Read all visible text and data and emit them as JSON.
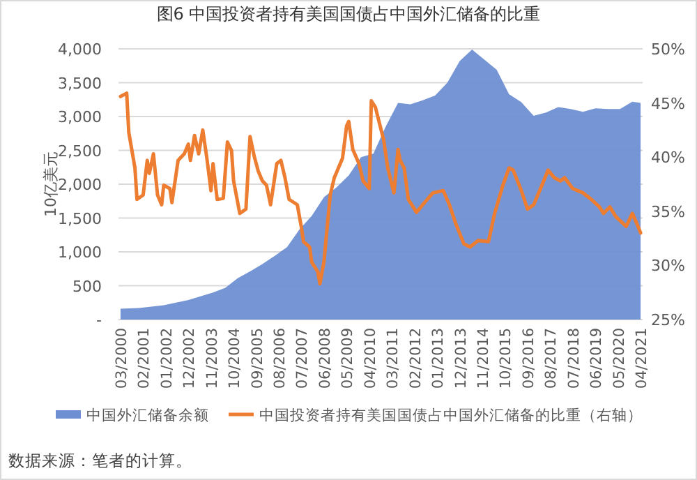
{
  "chart_data": {
    "type": "line",
    "title": "图6   中国投资者持有美国国债占中国外汇储备的比重",
    "ylabel": "10亿美元",
    "xlim": [
      "2000-02",
      "2021-05"
    ],
    "xticks": [
      {
        "value": "2000-03",
        "label": "03/2000"
      },
      {
        "value": "2001-02",
        "label": "02/2001"
      },
      {
        "value": "2002-01",
        "label": "01/2002"
      },
      {
        "value": "2002-12",
        "label": "12/2002"
      },
      {
        "value": "2003-11",
        "label": "11/2003"
      },
      {
        "value": "2004-10",
        "label": "10/2004"
      },
      {
        "value": "2005-09",
        "label": "09/2005"
      },
      {
        "value": "2006-08",
        "label": "08/2006"
      },
      {
        "value": "2007-07",
        "label": "07/2007"
      },
      {
        "value": "2008-06",
        "label": "06/2008"
      },
      {
        "value": "2009-05",
        "label": "05/2009"
      },
      {
        "value": "2010-04",
        "label": "04/2010"
      },
      {
        "value": "2011-03",
        "label": "03/2011"
      },
      {
        "value": "2012-02",
        "label": "02/2012"
      },
      {
        "value": "2013-01",
        "label": "01/2013"
      },
      {
        "value": "2013-12",
        "label": "12/2013"
      },
      {
        "value": "2014-11",
        "label": "11/2014"
      },
      {
        "value": "2015-10",
        "label": "10/2015"
      },
      {
        "value": "2016-09",
        "label": "09/2016"
      },
      {
        "value": "2017-08",
        "label": "08/2017"
      },
      {
        "value": "2018-07",
        "label": "07/2018"
      },
      {
        "value": "2019-06",
        "label": "06/2019"
      },
      {
        "value": "2020-05",
        "label": "05/2020"
      },
      {
        "value": "2021-04",
        "label": "04/2021"
      }
    ],
    "ylim": [
      0,
      4000
    ],
    "yticks": [
      {
        "value": 0,
        "label": "-"
      },
      {
        "value": 500,
        "label": "500"
      },
      {
        "value": 1000,
        "label": "1,000"
      },
      {
        "value": 1500,
        "label": "1,500"
      },
      {
        "value": 2000,
        "label": "2,000"
      },
      {
        "value": 2500,
        "label": "2,500"
      },
      {
        "value": 3000,
        "label": "3,000"
      },
      {
        "value": 3500,
        "label": "3,500"
      },
      {
        "value": 4000,
        "label": "4,000"
      }
    ],
    "y2lim": [
      25,
      50
    ],
    "y2ticks": [
      {
        "value": 25,
        "label": "25%"
      },
      {
        "value": 30,
        "label": "30%"
      },
      {
        "value": 35,
        "label": "35%"
      },
      {
        "value": 40,
        "label": "40%"
      },
      {
        "value": 45,
        "label": "45%"
      },
      {
        "value": 50,
        "label": "50%"
      }
    ],
    "grid": "y",
    "legend": "bottom",
    "marker": "none",
    "line_style": "solid",
    "series": [
      {
        "name": "中国外汇储备余额",
        "type": "area",
        "color": "#6f8fd3",
        "x": [
          "2000-03",
          "2000-12",
          "2001-12",
          "2002-12",
          "2003-12",
          "2004-06",
          "2004-12",
          "2005-06",
          "2005-12",
          "2006-06",
          "2006-12",
          "2007-06",
          "2007-12",
          "2008-06",
          "2008-12",
          "2009-06",
          "2009-12",
          "2010-06",
          "2010-12",
          "2011-06",
          "2011-12",
          "2012-06",
          "2012-12",
          "2013-06",
          "2013-12",
          "2014-06",
          "2014-12",
          "2015-06",
          "2015-09",
          "2015-12",
          "2016-06",
          "2016-12",
          "2017-06",
          "2017-12",
          "2018-06",
          "2018-12",
          "2019-06",
          "2019-12",
          "2020-06",
          "2020-12",
          "2021-04"
        ],
        "values": [
          160,
          170,
          210,
          290,
          400,
          470,
          610,
          710,
          820,
          940,
          1070,
          1330,
          1530,
          1810,
          1950,
          2130,
          2400,
          2450,
          2850,
          3200,
          3180,
          3240,
          3310,
          3500,
          3820,
          3990,
          3840,
          3690,
          3510,
          3330,
          3210,
          3010,
          3060,
          3140,
          3110,
          3070,
          3120,
          3110,
          3110,
          3220,
          3200
        ]
      },
      {
        "name": "中国投资者持有美国国债占中国外汇储备的比重（右轴）",
        "type": "line",
        "axis": "y2",
        "color": "#ed7d31",
        "x": [
          "2000-03",
          "2000-06",
          "2000-07",
          "2000-10",
          "2000-11",
          "2001-02",
          "2001-04",
          "2001-05",
          "2001-07",
          "2001-09",
          "2001-11",
          "2001-12",
          "2002-03",
          "2002-04",
          "2002-05",
          "2002-07",
          "2002-10",
          "2002-12",
          "2003-01",
          "2003-03",
          "2003-05",
          "2003-07",
          "2003-09",
          "2003-11",
          "2003-12",
          "2004-02",
          "2004-05",
          "2004-07",
          "2004-09",
          "2004-10",
          "2005-01",
          "2005-04",
          "2005-06",
          "2005-08",
          "2005-10",
          "2005-12",
          "2006-02",
          "2006-04",
          "2006-07",
          "2006-09",
          "2006-11",
          "2007-01",
          "2007-05",
          "2007-07",
          "2007-08",
          "2007-11",
          "2007-12",
          "2008-03",
          "2008-04",
          "2008-06",
          "2008-09",
          "2008-11",
          "2009-03",
          "2009-05",
          "2009-06",
          "2009-08",
          "2009-11",
          "2010-01",
          "2010-04",
          "2010-05",
          "2010-07",
          "2010-11",
          "2011-01",
          "2011-04",
          "2011-06",
          "2011-07",
          "2011-09",
          "2011-11",
          "2012-03",
          "2012-06",
          "2012-11",
          "2013-04",
          "2013-07",
          "2013-10",
          "2014-02",
          "2014-05",
          "2014-09",
          "2015-02",
          "2015-05",
          "2015-09",
          "2015-12",
          "2016-02",
          "2016-06",
          "2016-09",
          "2016-12",
          "2017-02",
          "2017-04",
          "2017-07",
          "2017-10",
          "2018-01",
          "2018-03",
          "2018-07",
          "2018-12",
          "2019-04",
          "2019-08",
          "2019-10",
          "2020-01",
          "2020-04",
          "2020-09",
          "2020-12",
          "2021-03",
          "2021-04"
        ],
        "values": [
          45.6,
          45.9,
          42.3,
          39.0,
          36.1,
          36.5,
          39.7,
          38.5,
          40.3,
          36.5,
          35.6,
          37.4,
          37.1,
          35.8,
          37.1,
          39.7,
          40.3,
          41.2,
          39.7,
          42.0,
          40.3,
          42.5,
          39.9,
          36.9,
          39.4,
          36.1,
          36.2,
          41.4,
          40.6,
          37.8,
          34.8,
          35.2,
          41.9,
          40.1,
          38.7,
          37.8,
          37.4,
          35.6,
          39.4,
          39.7,
          38.1,
          36.1,
          35.6,
          33.5,
          32.2,
          31.7,
          30.3,
          29.4,
          28.3,
          30.4,
          36.5,
          38.1,
          39.9,
          42.9,
          43.3,
          40.7,
          39.4,
          37.8,
          37.1,
          45.2,
          44.6,
          41.6,
          39.0,
          36.7,
          40.7,
          39.7,
          39.0,
          36.1,
          34.9,
          35.6,
          36.7,
          36.9,
          35.6,
          33.9,
          32.0,
          31.7,
          32.3,
          32.2,
          34.8,
          37.4,
          39.0,
          38.8,
          36.9,
          35.2,
          35.6,
          36.5,
          37.4,
          38.8,
          38.1,
          37.8,
          38.1,
          37.1,
          36.7,
          36.1,
          35.4,
          34.8,
          35.4,
          34.5,
          33.6,
          34.8,
          33.5,
          33.0
        ]
      }
    ],
    "annotations": [
      "数据来源：笔者的计算。"
    ]
  }
}
